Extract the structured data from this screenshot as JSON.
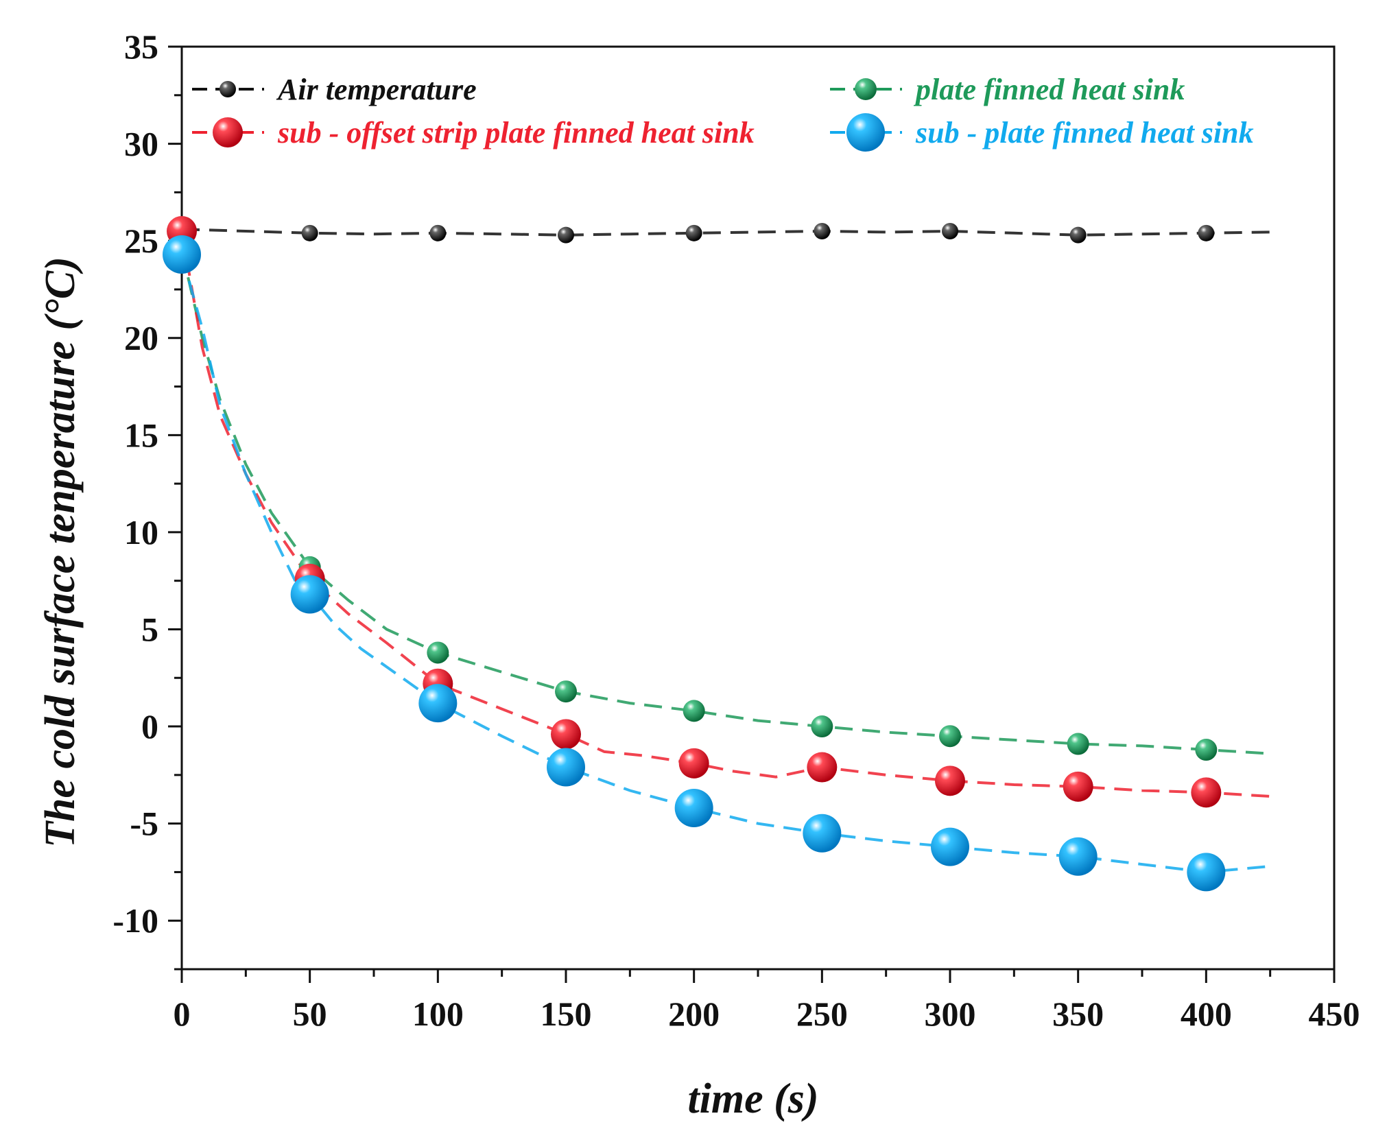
{
  "chart_data": {
    "type": "line",
    "title": "",
    "xlabel": "time (s)",
    "ylabel": "The cold surface tenperature (°C)",
    "xlim": [
      0,
      450
    ],
    "ylim": [
      -12.5,
      35
    ],
    "x_ticks": [
      0,
      50,
      100,
      150,
      200,
      250,
      300,
      350,
      400,
      450
    ],
    "x_tick_labels": [
      "0",
      "50",
      "100",
      "150",
      "200",
      "250",
      "300",
      "350",
      "400",
      "450"
    ],
    "y_ticks": [
      -10,
      -5,
      0,
      5,
      10,
      15,
      20,
      25,
      30,
      35
    ],
    "y_tick_labels": [
      "-10",
      "-5",
      "0",
      "5",
      "10",
      "15",
      "20",
      "25",
      "30",
      "35"
    ],
    "legend_position": "top",
    "series": [
      {
        "name": "Air temperature",
        "color": "#111111",
        "x": [
          0,
          50,
          100,
          150,
          200,
          250,
          300,
          350,
          400
        ],
        "values": [
          25.5,
          25.4,
          25.4,
          25.3,
          25.4,
          25.5,
          25.5,
          25.3,
          25.4
        ],
        "fit_x": [
          0,
          25,
          50,
          75,
          100,
          125,
          150,
          175,
          200,
          225,
          250,
          275,
          300,
          325,
          350,
          375,
          400,
          425
        ],
        "fit_values": [
          25.6,
          25.5,
          25.4,
          25.35,
          25.4,
          25.35,
          25.3,
          25.35,
          25.4,
          25.45,
          25.5,
          25.45,
          25.5,
          25.4,
          25.3,
          25.35,
          25.4,
          25.45
        ]
      },
      {
        "name": "plate finned heat sink",
        "color": "#1e9a5a",
        "x": [
          0,
          50,
          100,
          150,
          200,
          250,
          300,
          350,
          400
        ],
        "values": [
          24.5,
          8.2,
          3.8,
          1.8,
          0.8,
          0.0,
          -0.5,
          -0.9,
          -1.2
        ],
        "fit_x": [
          0,
          8,
          15,
          25,
          35,
          50,
          65,
          80,
          100,
          125,
          150,
          175,
          200,
          225,
          250,
          275,
          300,
          325,
          350,
          375,
          400,
          425
        ],
        "fit_values": [
          24.5,
          20.0,
          16.8,
          13.5,
          11.0,
          8.2,
          6.5,
          5.0,
          3.8,
          2.8,
          1.8,
          1.2,
          0.8,
          0.3,
          0.0,
          -0.3,
          -0.5,
          -0.7,
          -0.9,
          -1.0,
          -1.2,
          -1.4
        ]
      },
      {
        "name": "sub - offset strip plate finned heat sink",
        "color": "#ee2230",
        "x": [
          0,
          50,
          100,
          150,
          200,
          250,
          300,
          350,
          400
        ],
        "values": [
          25.5,
          7.6,
          2.2,
          -0.4,
          -1.9,
          -2.1,
          -2.8,
          -3.1,
          -3.4
        ],
        "fit_x": [
          0,
          8,
          15,
          25,
          35,
          50,
          65,
          80,
          100,
          125,
          150,
          165,
          180,
          200,
          215,
          232,
          250,
          275,
          300,
          325,
          350,
          375,
          400,
          425
        ],
        "fit_values": [
          25.5,
          19.5,
          16.0,
          13.0,
          10.5,
          7.6,
          5.8,
          4.3,
          2.2,
          0.9,
          -0.4,
          -1.3,
          -1.5,
          -1.9,
          -2.3,
          -2.6,
          -2.1,
          -2.5,
          -2.8,
          -3.0,
          -3.1,
          -3.3,
          -3.4,
          -3.6
        ]
      },
      {
        "name": "sub - plate finned heat sink",
        "color": "#11aaee",
        "x": [
          0,
          50,
          100,
          150,
          200,
          250,
          300,
          350,
          400
        ],
        "values": [
          24.3,
          6.8,
          1.2,
          -2.1,
          -4.2,
          -5.5,
          -6.2,
          -6.7,
          -7.5
        ],
        "fit_x": [
          0,
          8,
          15,
          25,
          35,
          45,
          50,
          60,
          70,
          85,
          100,
          125,
          150,
          175,
          200,
          225,
          250,
          275,
          300,
          325,
          350,
          375,
          400,
          425
        ],
        "fit_values": [
          24.3,
          20.5,
          16.5,
          13.0,
          10.0,
          7.3,
          6.8,
          5.2,
          4.0,
          2.6,
          1.2,
          -0.5,
          -2.1,
          -3.3,
          -4.2,
          -5.0,
          -5.5,
          -5.9,
          -6.2,
          -6.5,
          -6.7,
          -7.1,
          -7.5,
          -7.2
        ]
      }
    ]
  }
}
